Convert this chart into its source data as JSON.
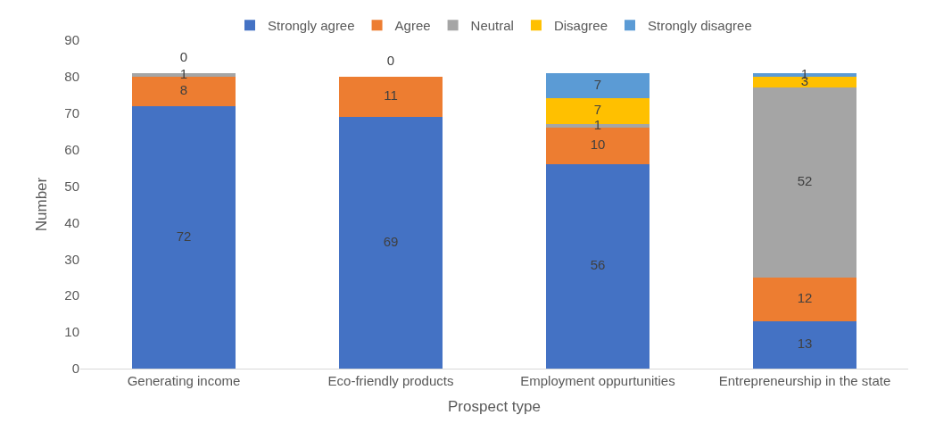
{
  "chart_data": {
    "type": "bar",
    "stacked": true,
    "xlabel": "Prospect type",
    "ylabel": "Number",
    "categories": [
      "Generating income",
      "Eco-friendly products",
      "Employment oppurtunities",
      "Entrepreneurship in the state"
    ],
    "series": [
      {
        "name": "Strongly agree",
        "color": "#4472c4",
        "values": [
          72,
          69,
          56,
          13
        ],
        "value_labels": [
          "72",
          "69",
          "56",
          "13"
        ]
      },
      {
        "name": "Agree",
        "color": "#ed7d31",
        "values": [
          8,
          11,
          10,
          12
        ],
        "value_labels": [
          "8",
          "11",
          "10",
          "12"
        ]
      },
      {
        "name": "Neutral",
        "color": "#a5a5a5",
        "values": [
          1,
          0,
          1,
          52
        ],
        "value_labels": [
          "1",
          null,
          "1",
          "52"
        ]
      },
      {
        "name": "Disagree",
        "color": "#ffc000",
        "values": [
          0,
          0,
          7,
          3
        ],
        "value_labels": [
          null,
          null,
          "7",
          "3"
        ]
      },
      {
        "name": "Strongly disagree",
        "color": "#5b9bd5",
        "values": [
          0,
          0,
          7,
          1
        ],
        "value_labels": [
          "0",
          "0",
          "7",
          "1"
        ]
      }
    ],
    "ylim": [
      0,
      90
    ],
    "yticks": [
      0,
      10,
      20,
      30,
      40,
      50,
      60,
      70,
      80,
      90
    ],
    "grid": false,
    "legend": "top"
  }
}
